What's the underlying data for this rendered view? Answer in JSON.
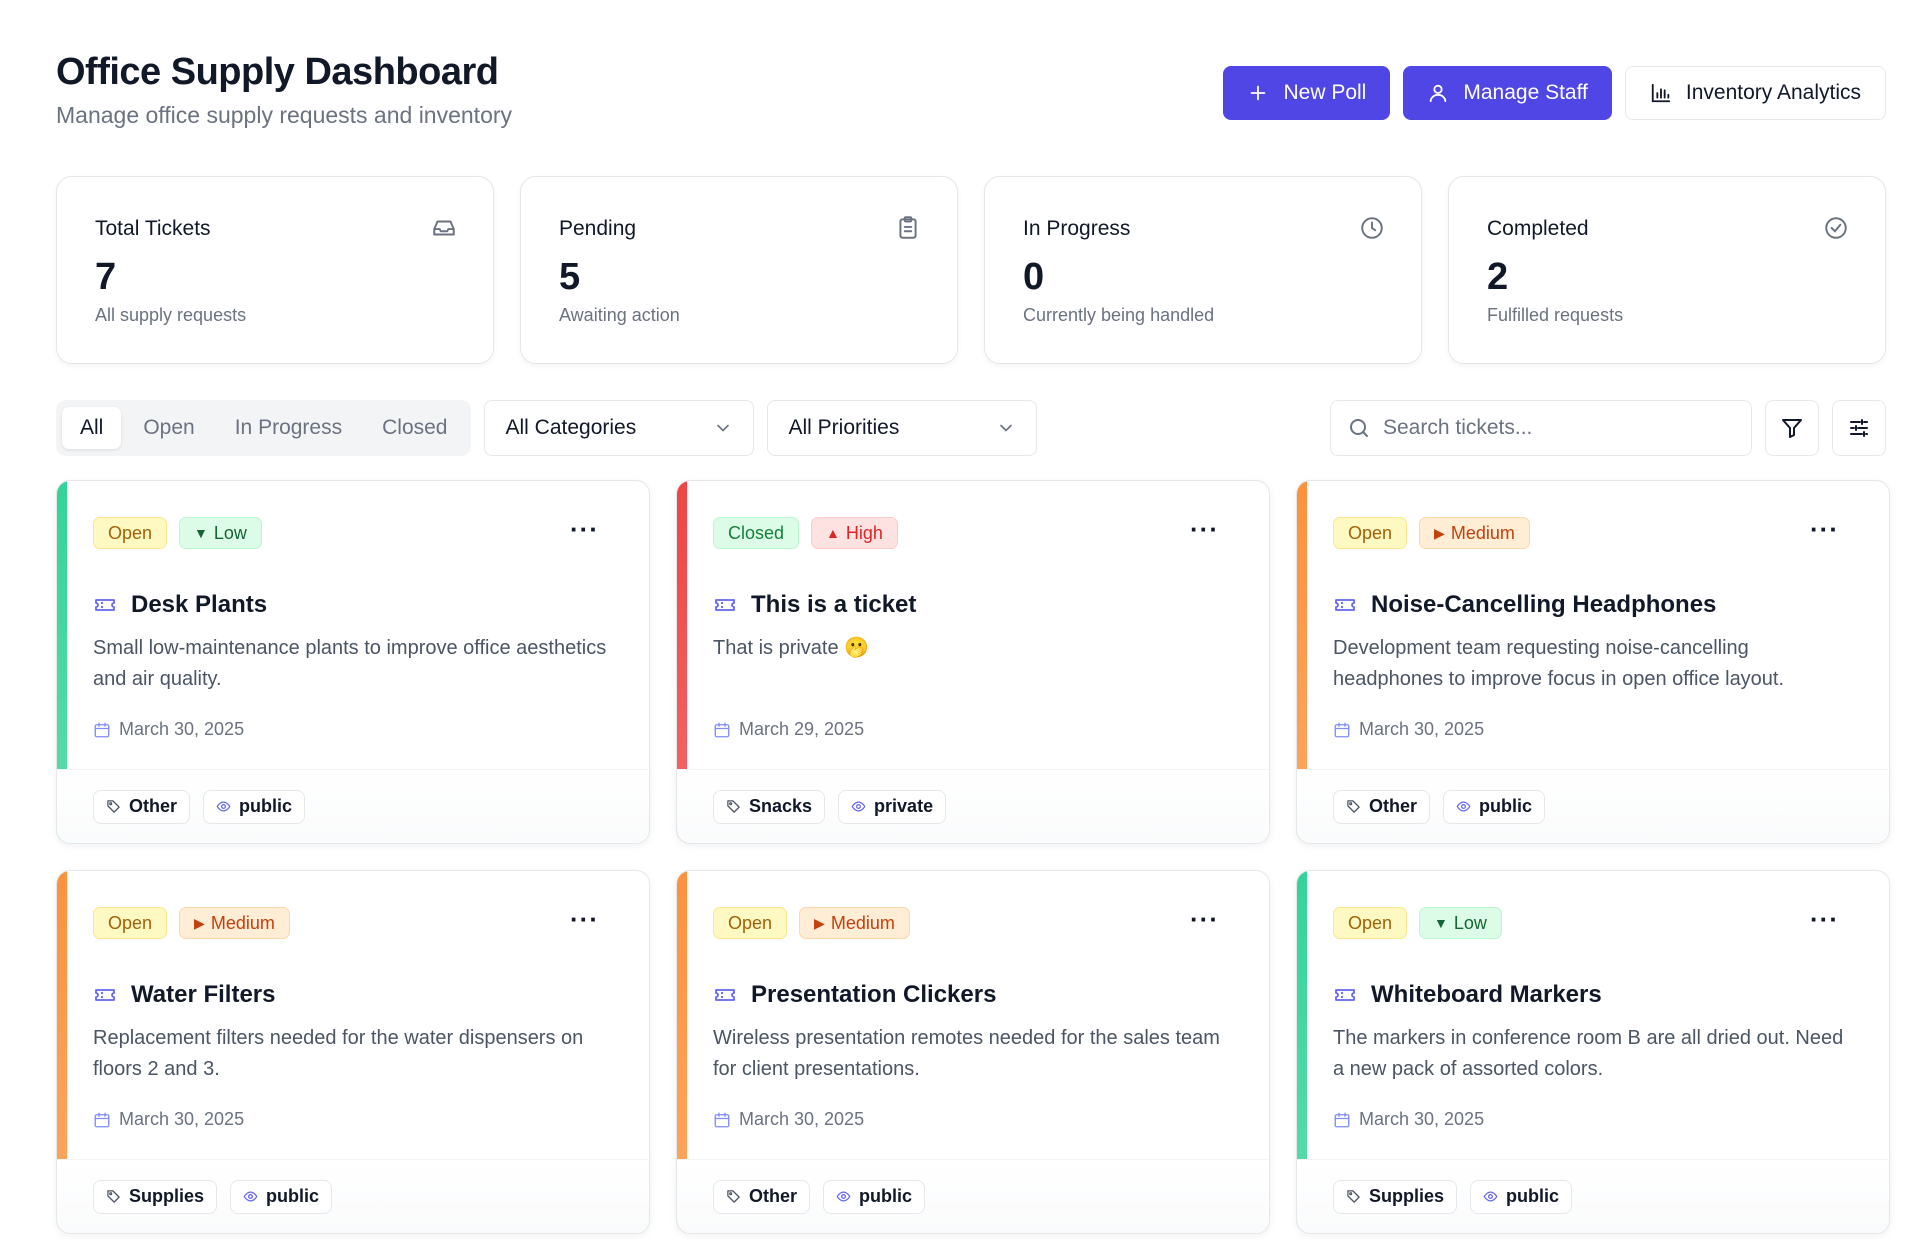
{
  "header": {
    "title": "Office Supply Dashboard",
    "subtitle": "Manage office supply requests and inventory",
    "buttons": {
      "new_poll": "New Poll",
      "manage_staff": "Manage Staff",
      "inventory_analytics": "Inventory Analytics"
    }
  },
  "stats": [
    {
      "label": "Total Tickets",
      "value": "7",
      "desc": "All supply requests",
      "icon": "inbox-icon"
    },
    {
      "label": "Pending",
      "value": "5",
      "desc": "Awaiting action",
      "icon": "clipboard-icon"
    },
    {
      "label": "In Progress",
      "value": "0",
      "desc": "Currently being handled",
      "icon": "clock-icon"
    },
    {
      "label": "Completed",
      "value": "2",
      "desc": "Fulfilled requests",
      "icon": "check-circle-icon"
    }
  ],
  "filters": {
    "tabs": [
      "All",
      "Open",
      "In Progress",
      "Closed"
    ],
    "active_tab": "All",
    "category": "All Categories",
    "priority": "All Priorities",
    "search_placeholder": "Search tickets..."
  },
  "tickets": [
    {
      "status": "Open",
      "priority": "Low",
      "priority_glyph": "▼",
      "title": "Desk Plants",
      "desc": "Small low-maintenance plants to improve office aesthetics and air quality.",
      "date": "March 30, 2025",
      "category": "Other",
      "visibility": "public",
      "accent": "#34d399"
    },
    {
      "status": "Closed",
      "priority": "High",
      "priority_glyph": "▲",
      "title": "This is a ticket",
      "desc": "That is private 🫢",
      "date": "March 29, 2025",
      "category": "Snacks",
      "visibility": "private",
      "accent": "#ef4444"
    },
    {
      "status": "Open",
      "priority": "Medium",
      "priority_glyph": "▶",
      "title": "Noise-Cancelling Headphones",
      "desc": "Development team requesting noise-cancelling headphones to improve focus in open office layout.",
      "date": "March 30, 2025",
      "category": "Other",
      "visibility": "public",
      "accent": "#fb923c"
    },
    {
      "status": "Open",
      "priority": "Medium",
      "priority_glyph": "▶",
      "title": "Water Filters",
      "desc": "Replacement filters needed for the water dispensers on floors 2 and 3.",
      "date": "March 30, 2025",
      "category": "Supplies",
      "visibility": "public",
      "accent": "#fb923c"
    },
    {
      "status": "Open",
      "priority": "Medium",
      "priority_glyph": "▶",
      "title": "Presentation Clickers",
      "desc": "Wireless presentation remotes needed for the sales team for client presentations.",
      "date": "March 30, 2025",
      "category": "Other",
      "visibility": "public",
      "accent": "#fb923c"
    },
    {
      "status": "Open",
      "priority": "Low",
      "priority_glyph": "▼",
      "title": "Whiteboard Markers",
      "desc": "The markers in conference room B are all dried out. Need a new pack of assorted colors.",
      "date": "March 30, 2025",
      "category": "Supplies",
      "visibility": "public",
      "accent": "#34d399"
    }
  ],
  "colors": {
    "primary": "#4f46e5",
    "status_open": "#fef9c3",
    "status_closed": "#dcfce7",
    "priority_low": "#dcfce7",
    "priority_medium": "#ffedd5",
    "priority_high": "#fee2e2"
  }
}
